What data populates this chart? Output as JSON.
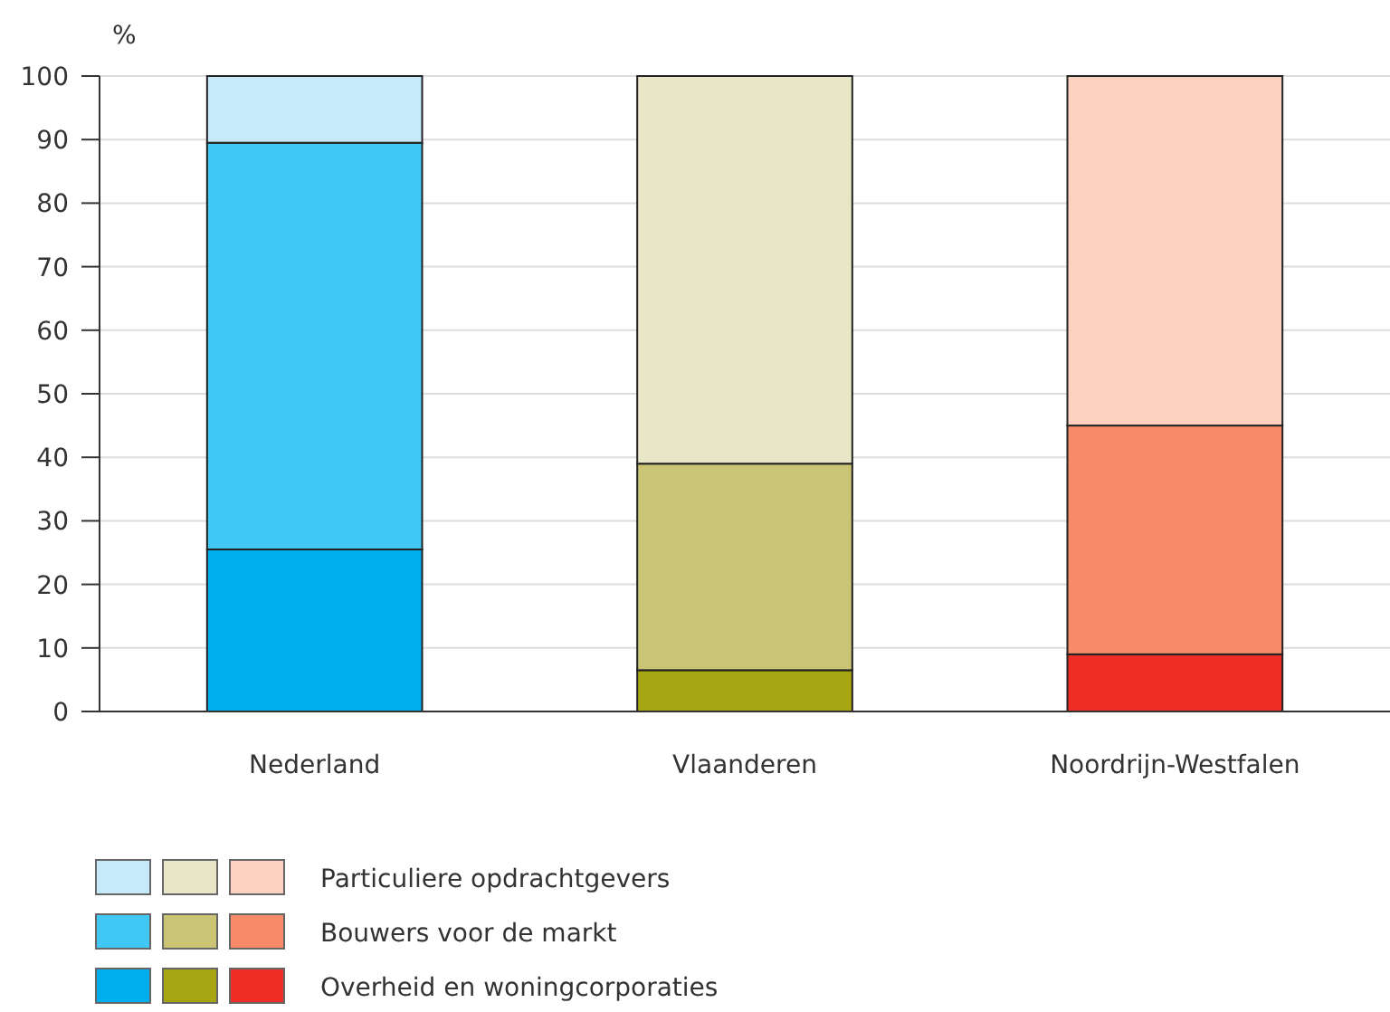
{
  "chart_data": {
    "type": "bar",
    "stacked": true,
    "ylabel": "%",
    "categories": [
      "Nederland",
      "Vlaanderen",
      "Noordrijn-Westfalen"
    ],
    "series": [
      {
        "name": "Overheid en woningcorporaties",
        "colors": [
          "#00aeef",
          "#a8a513",
          "#ee2e24"
        ],
        "values": [
          25.5,
          6.5,
          9
        ]
      },
      {
        "name": "Bouwers voor de markt",
        "colors": [
          "#40c7f4",
          "#cac574",
          "#f68a69"
        ],
        "values": [
          64,
          32.5,
          36
        ]
      },
      {
        "name": "Particuliere opdrachtgevers",
        "colors": [
          "#c6eaf9",
          "#e7e6c7",
          "#fdd1c0"
        ],
        "values": [
          10.5,
          61,
          55
        ]
      }
    ],
    "ylim": [
      0,
      100
    ],
    "yticks": [
      0,
      10,
      20,
      30,
      40,
      50,
      60,
      70,
      80,
      90,
      100
    ],
    "grid": "y",
    "legend": "bottom left"
  }
}
